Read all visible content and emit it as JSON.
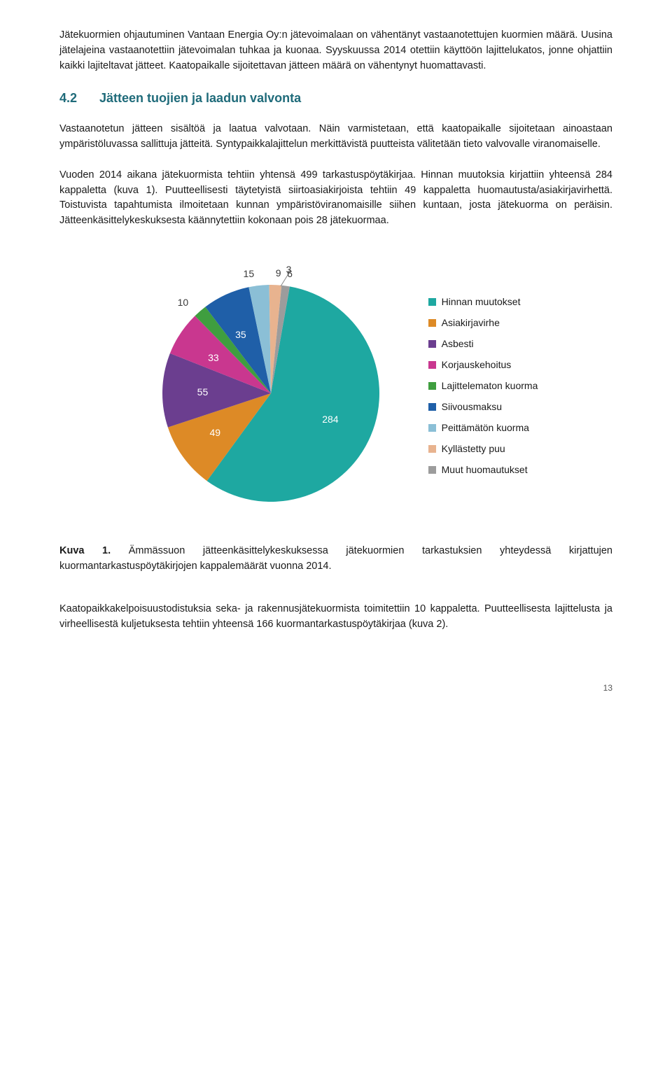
{
  "para1": "Jätekuormien ohjautuminen Vantaan Energia Oy:n jätevoimalaan on vähentänyt vastaanotettujen kuormien määrä. Uusina jätelajeina vastaanotettiin jätevoimalan tuhkaa ja kuonaa. Syyskuussa 2014 otettiin käyttöön lajittelukatos, jonne ohjattiin kaikki lajiteltavat jätteet. Kaatopaikalle sijoitettavan jätteen määrä on vähentynyt huomattavasti.",
  "heading_num": "4.2",
  "heading_text": "Jätteen tuojien ja laadun valvonta",
  "para2": "Vastaanotetun jätteen sisältöä ja laatua valvotaan. Näin varmistetaan, että kaatopaikalle sijoitetaan ainoastaan ympäristöluvassa sallittuja jätteitä. Syntypaikkalajittelun merkittävistä puutteista välitetään tieto valvovalle viranomaiselle.",
  "para3": "Vuoden 2014 aikana jätekuormista tehtiin yhtensä 499 tarkastuspöytäkirjaa. Hinnan muutoksia kirjattiin yhteensä 284 kappaletta (kuva 1). Puutteellisesti täytetyistä siirtoasiakirjoista tehtiin 49 kappaletta huomautusta/asiakirjavirhettä. Toistuvista tapahtumista ilmoitetaan kunnan ympäristöviranomaisille siihen kuntaan, josta jätekuorma on peräisin. Jätteenkäsittelykeskuksesta käännytettiin kokonaan pois 28 jätekuormaa.",
  "chart": {
    "type": "pie",
    "slices": [
      {
        "label": "Hinnan muutokset",
        "value": 284,
        "color": "#1ea8a1"
      },
      {
        "label": "Asiakirjavirhe",
        "value": 49,
        "color": "#dd8a26"
      },
      {
        "label": "Asbesti",
        "value": 55,
        "color": "#6b3e8f"
      },
      {
        "label": "Korjauskehoitus",
        "value": 33,
        "color": "#c9378f"
      },
      {
        "label": "Lajittelematon kuorma",
        "value": 10,
        "color": "#3f9e3f"
      },
      {
        "label": "Siivousmaksu",
        "value": 35,
        "color": "#1f5fa8"
      },
      {
        "label": "Peittämätön kuorma",
        "value": 15,
        "color": "#8bbfd6"
      },
      {
        "label": "Kyllästetty puu",
        "value": 9,
        "color": "#e8b38f"
      },
      {
        "label": "Muut huomautukset",
        "value": 6,
        "color": "#9c9c9c"
      }
    ],
    "outside_label": {
      "text": "3",
      "leader": true
    },
    "legend_markers": true,
    "background": "#ffffff",
    "label_fontsize": 14,
    "label_color": "#3a3a3a",
    "start_angle_deg": -80
  },
  "caption_lead": "Kuva 1.",
  "caption_rest": " Ämmässuon jätteenkäsittelykeskuksessa jätekuormien tarkastuksien yhteydessä kirjattujen kuormantarkastuspöytäkirjojen kappalemäärät vuonna 2014.",
  "para4": "Kaatopaikkakelpoisuustodistuksia seka- ja rakennusjätekuormista toimitettiin 10 kappaletta. Puutteellisesta lajittelusta ja virheellisestä kuljetuksesta tehtiin yhteensä 166 kuormantarkastuspöytäkirjaa (kuva 2).",
  "page_number": "13"
}
